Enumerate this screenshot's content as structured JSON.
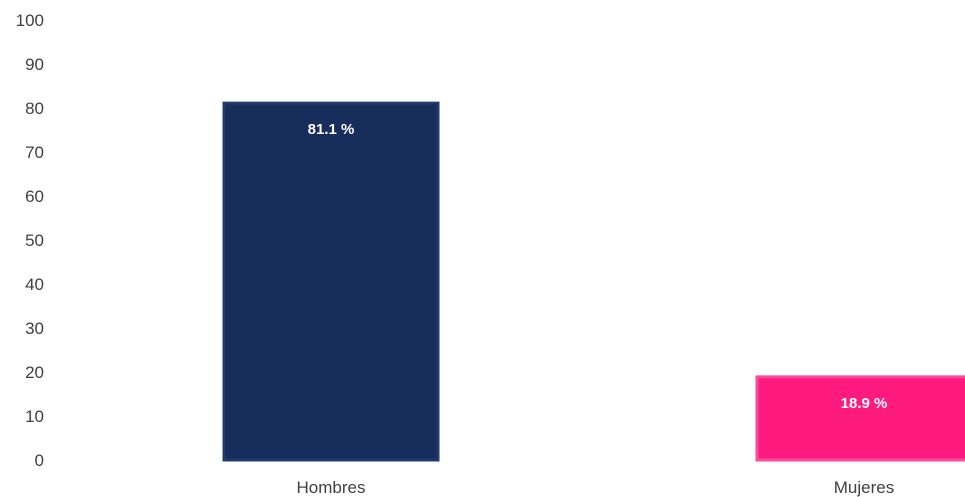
{
  "chart_data": {
    "type": "bar",
    "title": "",
    "xlabel": "",
    "ylabel": "",
    "categories": [
      "Hombres",
      "Mujeres"
    ],
    "values": [
      81.1,
      18.9
    ],
    "data_labels": [
      "81.1 %",
      "18.9 %"
    ],
    "ylim": [
      0,
      100
    ],
    "yticks": [
      0,
      10,
      20,
      30,
      40,
      50,
      60,
      70,
      80,
      90,
      100
    ],
    "grid": false,
    "legend": "none",
    "colors": [
      "#172d5c",
      "#ff1a7f"
    ],
    "border_colors": [
      "#203a6b",
      "#ff4b9a"
    ]
  }
}
